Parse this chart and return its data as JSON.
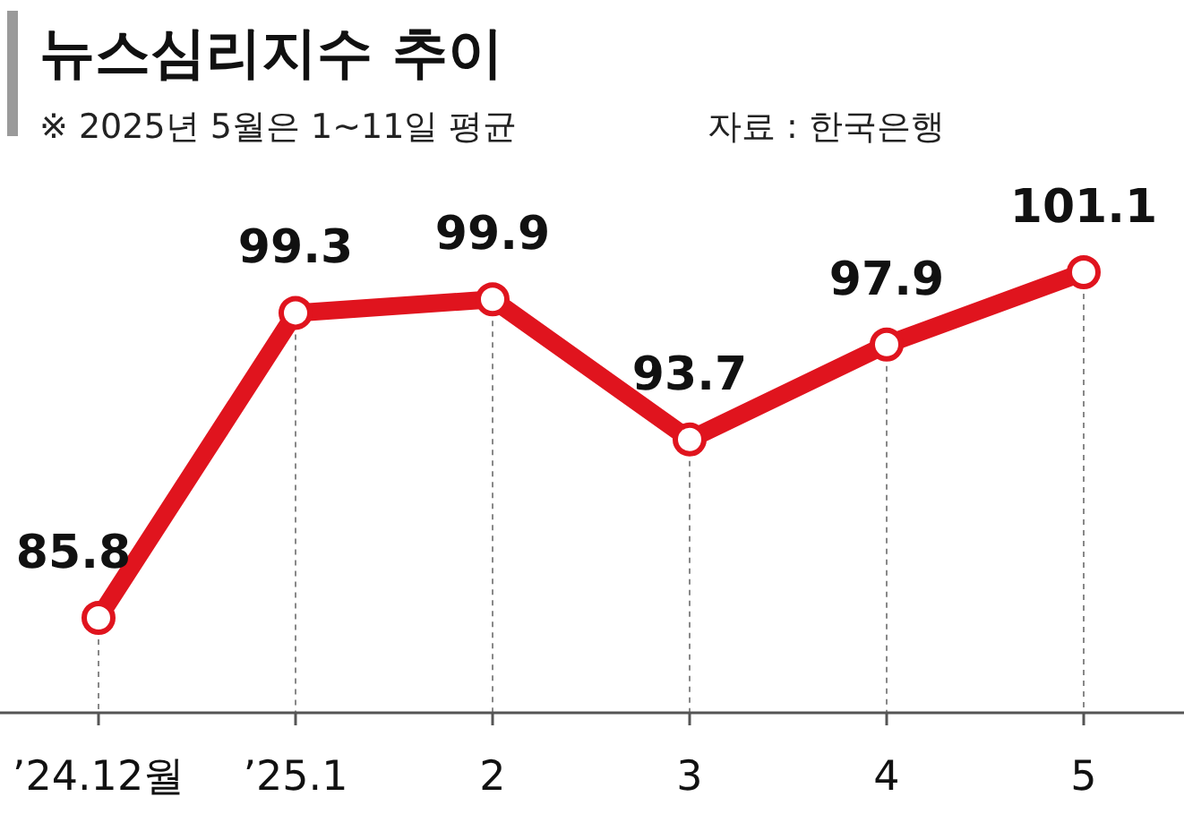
{
  "chart_data": {
    "type": "line",
    "title": "뉴스심리지수 추이",
    "subtitle": "※ 2025년 5월은 1~11일 평균",
    "annotations": [
      "자료 : 한국은행"
    ],
    "categories": [
      "’24.12월",
      "’25.1",
      "2",
      "3",
      "4",
      "5"
    ],
    "series": [
      {
        "color": "#e0141e",
        "values": [
          85.8,
          99.3,
          99.9,
          93.7,
          97.9,
          101.1
        ]
      }
    ],
    "data_labels": true,
    "marker": "circle",
    "line_style": "solid",
    "grid": "x"
  }
}
